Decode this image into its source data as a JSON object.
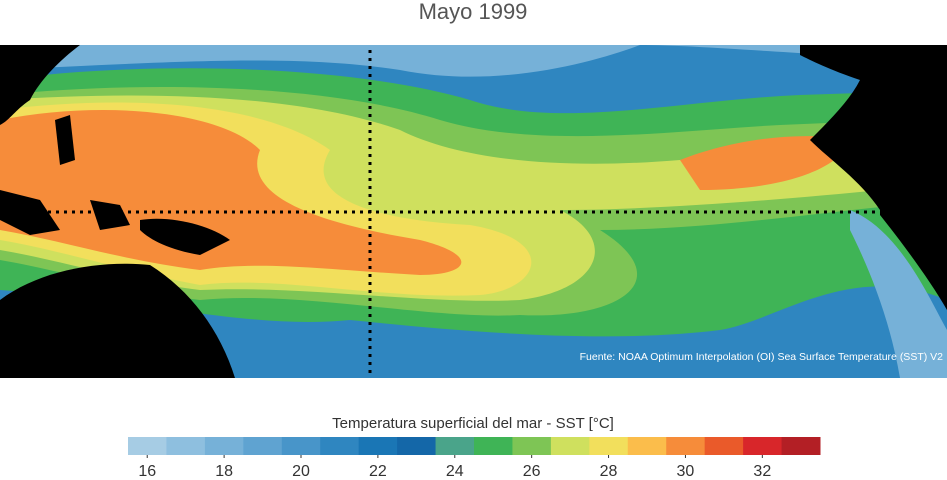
{
  "title": "Mayo 1999",
  "source": "Fuente: NOAA Optimum Interpolation (OI) Sea Surface Temperature (SST) V2",
  "colorbar": {
    "label": "Temperatura superficial del mar - SST  [°C]",
    "lim": [
      15.5,
      33.5
    ],
    "ticks": [
      16,
      18,
      20,
      22,
      24,
      26,
      28,
      30,
      32
    ],
    "colors": [
      "#a6cce4",
      "#8ebfdf",
      "#76b1d8",
      "#5fa3d1",
      "#4895c9",
      "#2f86c0",
      "#1a76b5",
      "#1467a8",
      "#4aa48a",
      "#3fb456",
      "#7ec555",
      "#cfe05e",
      "#f2df5c",
      "#fbbd4b",
      "#f68c3a",
      "#ea5a2a",
      "#d8262a",
      "#b31f25"
    ]
  }
}
